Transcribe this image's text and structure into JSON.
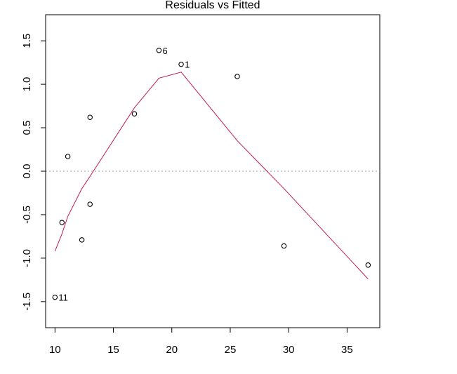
{
  "chart_data": {
    "type": "scatter",
    "title": "Residuals vs Fitted",
    "xlabel": "",
    "ylabel": "",
    "xlim": [
      9.2,
      37.8
    ],
    "ylim": [
      -1.8,
      1.8
    ],
    "xticks": [
      "10",
      "15",
      "20",
      "25",
      "30",
      "35"
    ],
    "yticks": [
      "-1.5",
      "-1.0",
      "-0.5",
      "0.0",
      "0.5",
      "1.0",
      "1.5"
    ],
    "points": [
      {
        "x": 10.0,
        "y": -1.45,
        "label": "11"
      },
      {
        "x": 10.6,
        "y": -0.59,
        "label": ""
      },
      {
        "x": 11.1,
        "y": 0.17,
        "label": ""
      },
      {
        "x": 12.3,
        "y": -0.79,
        "label": ""
      },
      {
        "x": 13.0,
        "y": -0.38,
        "label": ""
      },
      {
        "x": 13.0,
        "y": 0.62,
        "label": ""
      },
      {
        "x": 16.8,
        "y": 0.66,
        "label": ""
      },
      {
        "x": 18.9,
        "y": 1.39,
        "label": "6"
      },
      {
        "x": 20.8,
        "y": 1.23,
        "label": "1"
      },
      {
        "x": 25.6,
        "y": 1.09,
        "label": ""
      },
      {
        "x": 29.6,
        "y": -0.86,
        "label": ""
      },
      {
        "x": 36.8,
        "y": -1.08,
        "label": ""
      }
    ],
    "smoother": {
      "color": "#c2185b",
      "x": [
        10.0,
        10.6,
        11.1,
        12.3,
        13.0,
        16.8,
        18.9,
        20.8,
        25.6,
        29.6,
        36.8
      ],
      "y": [
        -0.92,
        -0.72,
        -0.52,
        -0.2,
        -0.06,
        0.73,
        1.07,
        1.14,
        0.35,
        -0.2,
        -1.24
      ]
    },
    "reference_line": {
      "y": 0.0,
      "style": "dotted",
      "color": "#999999"
    },
    "grid": false,
    "legend": "none"
  }
}
